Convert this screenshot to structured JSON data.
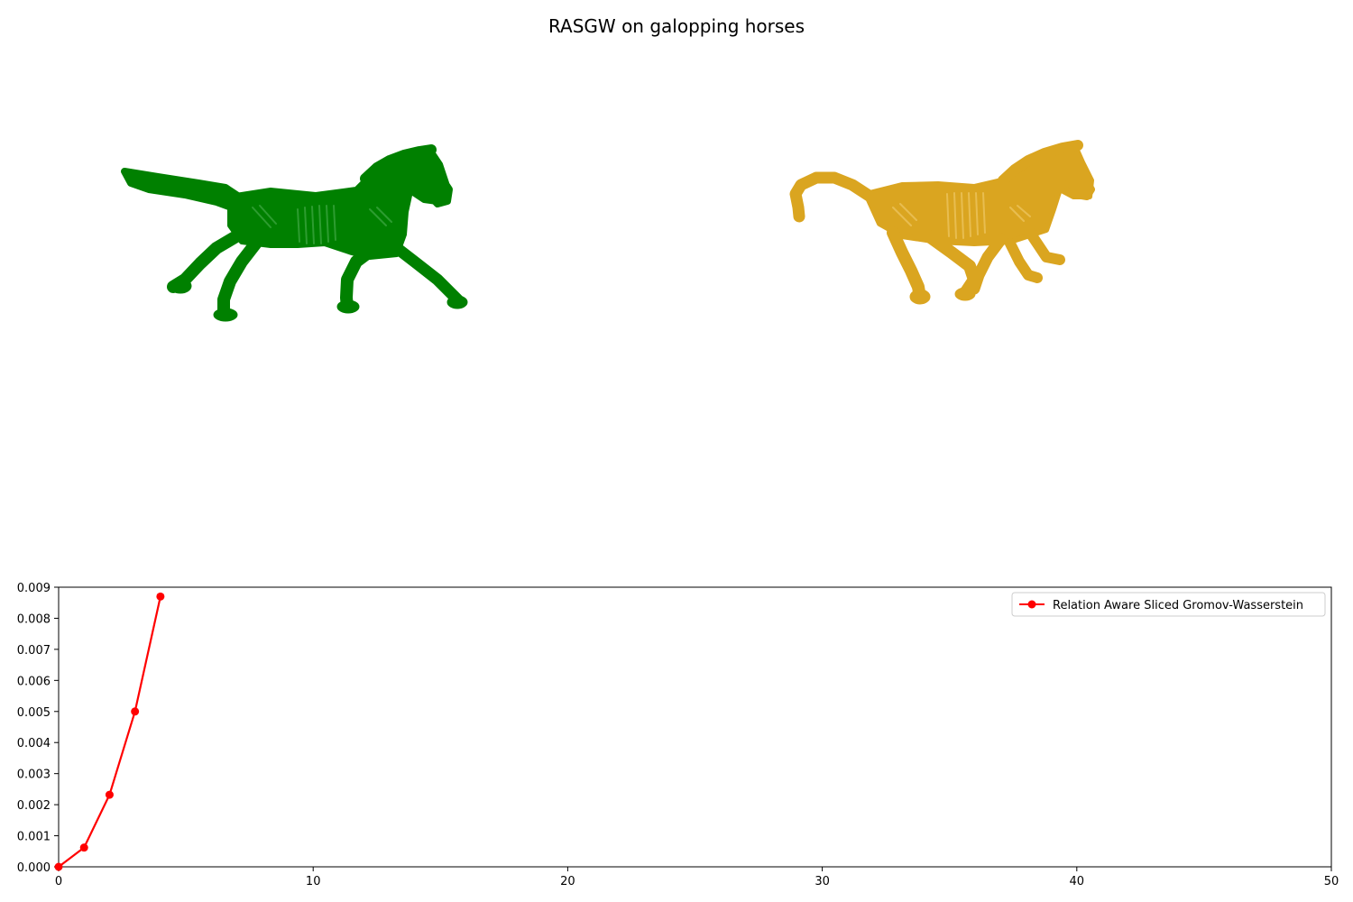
{
  "figure": {
    "title": "RASGW on galopping horses"
  },
  "shapes": [
    {
      "name": "horse-source",
      "color": "#008000"
    },
    {
      "name": "horse-target",
      "color": "#DAA520"
    }
  ],
  "chart_data": {
    "type": "line",
    "x": [
      0,
      1,
      2,
      3,
      4
    ],
    "series": [
      {
        "name": "Relation Aware Sliced Gromov-Wasserstein",
        "values": [
          0.0,
          0.00062,
          0.00232,
          0.005,
          0.0087
        ],
        "color": "#ff0000",
        "marker": "circle"
      }
    ],
    "xlim": [
      0,
      50
    ],
    "ylim": [
      0,
      0.009
    ],
    "xticks": [
      "0",
      "10",
      "20",
      "30",
      "40",
      "50"
    ],
    "yticks": [
      "0.000",
      "0.001",
      "0.002",
      "0.003",
      "0.004",
      "0.005",
      "0.006",
      "0.007",
      "0.008",
      "0.009"
    ],
    "grid": false,
    "legend": "top-right"
  }
}
